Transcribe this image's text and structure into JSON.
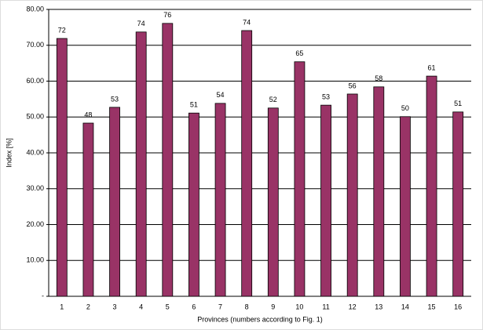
{
  "chart_data": {
    "type": "bar",
    "y_label": "Index [%]",
    "x_label": "Provinces (numbers according to Fig. 1)",
    "categories": [
      "1",
      "2",
      "3",
      "4",
      "5",
      "6",
      "7",
      "8",
      "9",
      "10",
      "11",
      "12",
      "13",
      "14",
      "15",
      "16"
    ],
    "values": [
      71.9,
      48.3,
      52.7,
      73.7,
      76.1,
      51.1,
      53.8,
      74.1,
      52.5,
      65.4,
      53.3,
      56.4,
      58.4,
      50.1,
      61.4,
      51.4
    ],
    "value_labels": [
      "72",
      "48",
      "53",
      "74",
      "76",
      "51",
      "54",
      "74",
      "52",
      "65",
      "53",
      "56",
      "58",
      "50",
      "61",
      "51"
    ],
    "color": "#993366",
    "ylim": [
      0,
      80
    ],
    "yticks": [
      {
        "value": 0,
        "label": "-"
      },
      {
        "value": 10,
        "label": "10.00"
      },
      {
        "value": 20,
        "label": "20.00"
      },
      {
        "value": 30,
        "label": "30.00"
      },
      {
        "value": 40,
        "label": "40.00"
      },
      {
        "value": 50,
        "label": "50.00"
      },
      {
        "value": 60,
        "label": "60.00"
      },
      {
        "value": 70,
        "label": "70.00"
      },
      {
        "value": 80,
        "label": "80.00"
      }
    ],
    "grid": true
  }
}
